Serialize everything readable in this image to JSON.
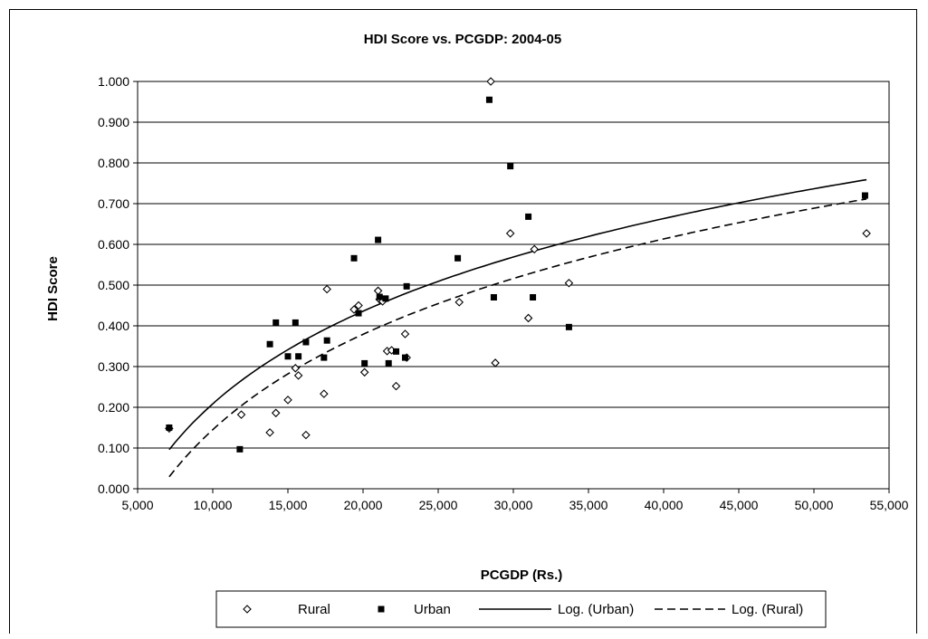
{
  "chart_data": {
    "type": "scatter",
    "title": "HDI Score vs. PCGDP: 2004-05",
    "xlabel": "PCGDP (Rs.)",
    "ylabel": "HDI Score",
    "xlim": [
      5000,
      55000
    ],
    "ylim": [
      0,
      1
    ],
    "x_ticks": [
      5000,
      10000,
      15000,
      20000,
      25000,
      30000,
      35000,
      40000,
      45000,
      50000,
      55000
    ],
    "x_tick_labels": [
      "5,000",
      "10,000",
      "15,000",
      "20,000",
      "25,000",
      "30,000",
      "35,000",
      "40,000",
      "45,000",
      "50,000",
      "55,000"
    ],
    "y_ticks": [
      0,
      0.1,
      0.2,
      0.3,
      0.4,
      0.5,
      0.6,
      0.7,
      0.8,
      0.9,
      1.0
    ],
    "y_tick_labels": [
      "0.000",
      "0.100",
      "0.200",
      "0.300",
      "0.400",
      "0.500",
      "0.600",
      "0.700",
      "0.800",
      "0.900",
      "1.000"
    ],
    "grid": "horizontal",
    "legend_position": "bottom",
    "series": [
      {
        "name": "Rural",
        "marker": "open-diamond",
        "points": [
          [
            7100,
            0.148
          ],
          [
            11900,
            0.182
          ],
          [
            13800,
            0.138
          ],
          [
            14200,
            0.186
          ],
          [
            15000,
            0.218
          ],
          [
            15500,
            0.296
          ],
          [
            15700,
            0.278
          ],
          [
            16200,
            0.132
          ],
          [
            17400,
            0.233
          ],
          [
            17600,
            0.49
          ],
          [
            19400,
            0.44
          ],
          [
            19700,
            0.45
          ],
          [
            20100,
            0.286
          ],
          [
            21000,
            0.486
          ],
          [
            21100,
            0.465
          ],
          [
            21300,
            0.46
          ],
          [
            21600,
            0.338
          ],
          [
            21900,
            0.34
          ],
          [
            22200,
            0.252
          ],
          [
            22800,
            0.38
          ],
          [
            22900,
            0.322
          ],
          [
            26400,
            0.458
          ],
          [
            28500,
            1.0
          ],
          [
            28800,
            0.309
          ],
          [
            29800,
            0.627
          ],
          [
            31000,
            0.419
          ],
          [
            31400,
            0.588
          ],
          [
            33700,
            0.505
          ],
          [
            53500,
            0.627
          ]
        ]
      },
      {
        "name": "Urban",
        "marker": "filled-square",
        "points": [
          [
            7100,
            0.15
          ],
          [
            11800,
            0.097
          ],
          [
            13800,
            0.355
          ],
          [
            14200,
            0.408
          ],
          [
            15000,
            0.325
          ],
          [
            15500,
            0.408
          ],
          [
            15700,
            0.325
          ],
          [
            16200,
            0.36
          ],
          [
            17400,
            0.322
          ],
          [
            17600,
            0.364
          ],
          [
            19400,
            0.566
          ],
          [
            19700,
            0.431
          ],
          [
            20100,
            0.308
          ],
          [
            21000,
            0.611
          ],
          [
            21100,
            0.471
          ],
          [
            21500,
            0.467
          ],
          [
            21700,
            0.308
          ],
          [
            22200,
            0.337
          ],
          [
            22800,
            0.322
          ],
          [
            22900,
            0.497
          ],
          [
            26300,
            0.566
          ],
          [
            28400,
            0.955
          ],
          [
            28700,
            0.47
          ],
          [
            29800,
            0.792
          ],
          [
            31000,
            0.668
          ],
          [
            31300,
            0.47
          ],
          [
            33700,
            0.397
          ],
          [
            53400,
            0.72
          ]
        ]
      }
    ],
    "trendlines": [
      {
        "name": "Log. (Urban)",
        "kind": "logarithmic",
        "style": "solid",
        "a": 0.3281,
        "b": -2.8134,
        "x_range": [
          7100,
          53500
        ]
      },
      {
        "name": "Log. (Rural)",
        "kind": "logarithmic",
        "style": "dashed",
        "a": 0.3378,
        "b": -2.9662,
        "x_range": [
          7100,
          53500
        ]
      }
    ],
    "legend": [
      {
        "label": "Rural",
        "kind": "open-diamond"
      },
      {
        "label": "Urban",
        "kind": "filled-square"
      },
      {
        "label": "Log. (Urban)",
        "kind": "solid-line"
      },
      {
        "label": "Log. (Rural)",
        "kind": "dashed-line"
      }
    ]
  }
}
